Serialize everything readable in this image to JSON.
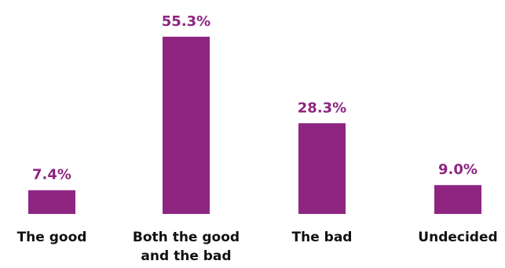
{
  "chart_data": {
    "type": "bar",
    "categories": [
      [
        "The good"
      ],
      [
        "Both the good",
        "and the bad"
      ],
      [
        "The bad"
      ],
      [
        "Undecided"
      ]
    ],
    "values": [
      7.4,
      55.3,
      28.3,
      9.0
    ],
    "value_labels": [
      "7.4%",
      "55.3%",
      "28.3%",
      "9.0%"
    ],
    "unit": "%",
    "title": "",
    "xlabel": "",
    "ylabel": "",
    "grid": false,
    "legend": "none"
  },
  "colors": {
    "bar": "#8e2580",
    "value_text": "#8e2580",
    "category_text": "#111111"
  }
}
